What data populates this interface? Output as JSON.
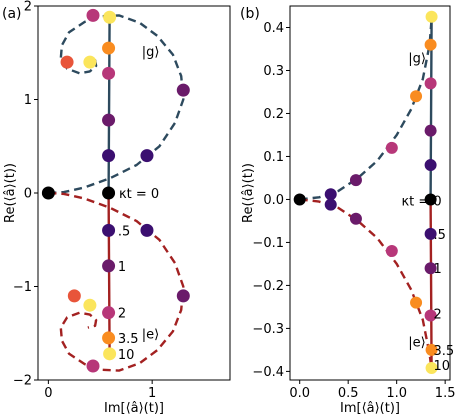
{
  "colors": {
    "blue": "#2d4a5e",
    "red": "#a32121",
    "t0": "#000000",
    "t_half": "#3b0f70",
    "t1": "#6a1b6a",
    "t2": "#b73779",
    "t2_5": "#e8553a",
    "t3_5": "#f98c20",
    "t10": "#fbe55c"
  },
  "chart_data": [
    {
      "type": "scatter",
      "panel_label": "(a)",
      "xlabel": "Im[⟨â⟩(t)]",
      "ylabel": "Re(⟨â⟩(t))",
      "xlim": [
        -0.1,
        1.75
      ],
      "ylim": [
        -2.0,
        2.0
      ],
      "xticks": [
        0,
        1
      ],
      "yticks": [
        -2,
        -1,
        0,
        1,
        2
      ],
      "xtick_labels": [
        "0",
        "1"
      ],
      "ytick_labels": [
        "−2",
        "−1",
        "0",
        "1",
        "2"
      ],
      "annotations": [
        {
          "text": "κt = 0",
          "x": 0.68,
          "y": 0.0
        },
        {
          "text": ".5",
          "x": 0.67,
          "y": -0.4
        },
        {
          "text": "1",
          "x": 0.67,
          "y": -0.78
        },
        {
          "text": "2",
          "x": 0.67,
          "y": -1.28
        },
        {
          "text": "3.5",
          "x": 0.67,
          "y": -1.55
        },
        {
          "text": "10",
          "x": 0.67,
          "y": -1.72
        },
        {
          "text": "|g⟩",
          "x": 0.9,
          "y": 1.52
        },
        {
          "text": "|e⟩",
          "x": 0.9,
          "y": -1.5
        }
      ],
      "series": [
        {
          "color_key": "blue",
          "style": "dashed",
          "x": [
            0,
            0.15,
            0.35,
            0.6,
            0.85,
            1.07,
            1.22,
            1.3,
            1.28,
            1.2,
            1.05,
            0.88,
            0.68,
            0.5,
            0.35,
            0.2,
            0.13,
            0.12,
            0.18,
            0.3,
            0.4,
            0.46,
            0.45,
            0.38
          ],
          "y": [
            0,
            0.01,
            0.06,
            0.16,
            0.3,
            0.5,
            0.75,
            1.0,
            1.25,
            1.48,
            1.68,
            1.82,
            1.9,
            1.89,
            1.83,
            1.72,
            1.58,
            1.44,
            1.33,
            1.28,
            1.3,
            1.36,
            1.42,
            1.44
          ]
        },
        {
          "color_key": "red",
          "style": "dashed",
          "x": [
            0,
            0.15,
            0.35,
            0.6,
            0.85,
            1.07,
            1.22,
            1.3,
            1.28,
            1.2,
            1.05,
            0.88,
            0.68,
            0.5,
            0.35,
            0.2,
            0.13,
            0.12,
            0.18,
            0.3,
            0.4,
            0.46,
            0.45,
            0.38
          ],
          "y": [
            0,
            -0.01,
            -0.06,
            -0.16,
            -0.3,
            -0.5,
            -0.75,
            -1.0,
            -1.25,
            -1.48,
            -1.68,
            -1.82,
            -1.9,
            -1.89,
            -1.83,
            -1.72,
            -1.58,
            -1.44,
            -1.33,
            -1.28,
            -1.3,
            -1.36,
            -1.42,
            -1.44
          ]
        },
        {
          "color_key": "blue",
          "style": "solid",
          "x": [
            0.58,
            0.59
          ],
          "y": [
            0.0,
            1.9
          ]
        },
        {
          "color_key": "red",
          "style": "solid",
          "x": [
            0.58,
            0.59
          ],
          "y": [
            0.0,
            -1.72
          ]
        }
      ],
      "points": [
        {
          "x": 0.0,
          "y": 0.0,
          "c": "t0"
        },
        {
          "x": 0.58,
          "y": 0.0,
          "c": "t0"
        },
        {
          "x": 0.58,
          "y": 0.4,
          "c": "t_half"
        },
        {
          "x": 0.58,
          "y": 0.78,
          "c": "t1"
        },
        {
          "x": 0.58,
          "y": 1.28,
          "c": "t2"
        },
        {
          "x": 0.58,
          "y": 1.55,
          "c": "t3_5"
        },
        {
          "x": 0.59,
          "y": 1.88,
          "c": "t10"
        },
        {
          "x": 0.58,
          "y": -0.4,
          "c": "t_half"
        },
        {
          "x": 0.58,
          "y": -0.78,
          "c": "t1"
        },
        {
          "x": 0.58,
          "y": -1.28,
          "c": "t2"
        },
        {
          "x": 0.58,
          "y": -1.55,
          "c": "t3_5"
        },
        {
          "x": 0.59,
          "y": -1.72,
          "c": "t10"
        },
        {
          "x": 0.95,
          "y": 0.4,
          "c": "t_half"
        },
        {
          "x": 1.3,
          "y": 1.1,
          "c": "t1"
        },
        {
          "x": 0.43,
          "y": 1.9,
          "c": "t2"
        },
        {
          "x": 0.18,
          "y": 1.4,
          "c": "t2_5"
        },
        {
          "x": 0.4,
          "y": 1.4,
          "c": "t10"
        },
        {
          "x": 0.95,
          "y": -0.4,
          "c": "t_half"
        },
        {
          "x": 1.3,
          "y": -1.1,
          "c": "t1"
        },
        {
          "x": 0.43,
          "y": -1.85,
          "c": "t2"
        },
        {
          "x": 0.25,
          "y": -1.1,
          "c": "t2_5"
        },
        {
          "x": 0.4,
          "y": -1.2,
          "c": "t10"
        }
      ]
    },
    {
      "type": "scatter",
      "panel_label": "(b)",
      "xlabel": "Im[⟨â⟩(t)]",
      "ylabel": "Re(⟨â⟩(t))",
      "xlim": [
        -0.1,
        1.55
      ],
      "ylim": [
        -0.42,
        0.45
      ],
      "xticks": [
        0.0,
        0.5,
        1.0,
        1.5
      ],
      "yticks": [
        -0.4,
        -0.3,
        -0.2,
        -0.1,
        0.0,
        0.1,
        0.2,
        0.3,
        0.4
      ],
      "xtick_labels": [
        "0.0",
        "0.5",
        "1.0",
        "1.5"
      ],
      "ytick_labels": [
        "−0.4",
        "−0.3",
        "−0.2",
        "−0.1",
        "0.0",
        "0.1",
        "0.2",
        "0.3",
        "0.4"
      ],
      "annotations": [
        {
          "text": "κt = 0",
          "x": 1.05,
          "y": -0.003
        },
        {
          "text": ".5",
          "x": 1.38,
          "y": -0.08
        },
        {
          "text": "1",
          "x": 1.38,
          "y": -0.16
        },
        {
          "text": "2",
          "x": 1.38,
          "y": -0.265
        },
        {
          "text": "3.5",
          "x": 1.38,
          "y": -0.35
        },
        {
          "text": "10",
          "x": 1.38,
          "y": -0.385
        },
        {
          "text": "|g⟩",
          "x": 1.12,
          "y": 0.33
        },
        {
          "text": "|e⟩",
          "x": 1.12,
          "y": -0.33
        }
      ],
      "series": [
        {
          "color_key": "blue",
          "style": "dashed",
          "x": [
            0.0,
            0.2,
            0.4,
            0.6,
            0.8,
            1.0,
            1.15,
            1.27,
            1.34,
            1.36
          ],
          "y": [
            0.0,
            0.005,
            0.02,
            0.05,
            0.09,
            0.15,
            0.21,
            0.28,
            0.36,
            0.42
          ]
        },
        {
          "color_key": "red",
          "style": "dashed",
          "x": [
            0.0,
            0.2,
            0.4,
            0.6,
            0.8,
            1.0,
            1.15,
            1.27,
            1.34,
            1.36
          ],
          "y": [
            0.0,
            -0.005,
            -0.02,
            -0.05,
            -0.09,
            -0.15,
            -0.21,
            -0.28,
            -0.36,
            -0.395
          ]
        },
        {
          "color_key": "blue",
          "style": "solid",
          "x": [
            1.35,
            1.36
          ],
          "y": [
            0.0,
            0.42
          ]
        },
        {
          "color_key": "red",
          "style": "solid",
          "x": [
            1.35,
            1.36
          ],
          "y": [
            0.0,
            -0.395
          ]
        }
      ],
      "points": [
        {
          "x": 0.0,
          "y": 0.0,
          "c": "t0"
        },
        {
          "x": 1.35,
          "y": 0.0,
          "c": "t0"
        },
        {
          "x": 0.32,
          "y": 0.012,
          "c": "t_half"
        },
        {
          "x": 0.58,
          "y": 0.045,
          "c": "t1"
        },
        {
          "x": 0.95,
          "y": 0.12,
          "c": "t2"
        },
        {
          "x": 1.2,
          "y": 0.24,
          "c": "t3_5"
        },
        {
          "x": 1.36,
          "y": 0.425,
          "c": "t10"
        },
        {
          "x": 1.35,
          "y": 0.08,
          "c": "t_half"
        },
        {
          "x": 1.35,
          "y": 0.16,
          "c": "t1"
        },
        {
          "x": 1.35,
          "y": 0.27,
          "c": "t2"
        },
        {
          "x": 1.35,
          "y": 0.36,
          "c": "t3_5"
        },
        {
          "x": 0.32,
          "y": -0.012,
          "c": "t_half"
        },
        {
          "x": 0.58,
          "y": -0.045,
          "c": "t1"
        },
        {
          "x": 0.95,
          "y": -0.12,
          "c": "t2"
        },
        {
          "x": 1.2,
          "y": -0.24,
          "c": "t3_5"
        },
        {
          "x": 1.35,
          "y": -0.08,
          "c": "t_half"
        },
        {
          "x": 1.35,
          "y": -0.16,
          "c": "t1"
        },
        {
          "x": 1.35,
          "y": -0.27,
          "c": "t2"
        },
        {
          "x": 1.36,
          "y": -0.35,
          "c": "t3_5"
        },
        {
          "x": 1.36,
          "y": -0.392,
          "c": "t10"
        }
      ]
    }
  ]
}
